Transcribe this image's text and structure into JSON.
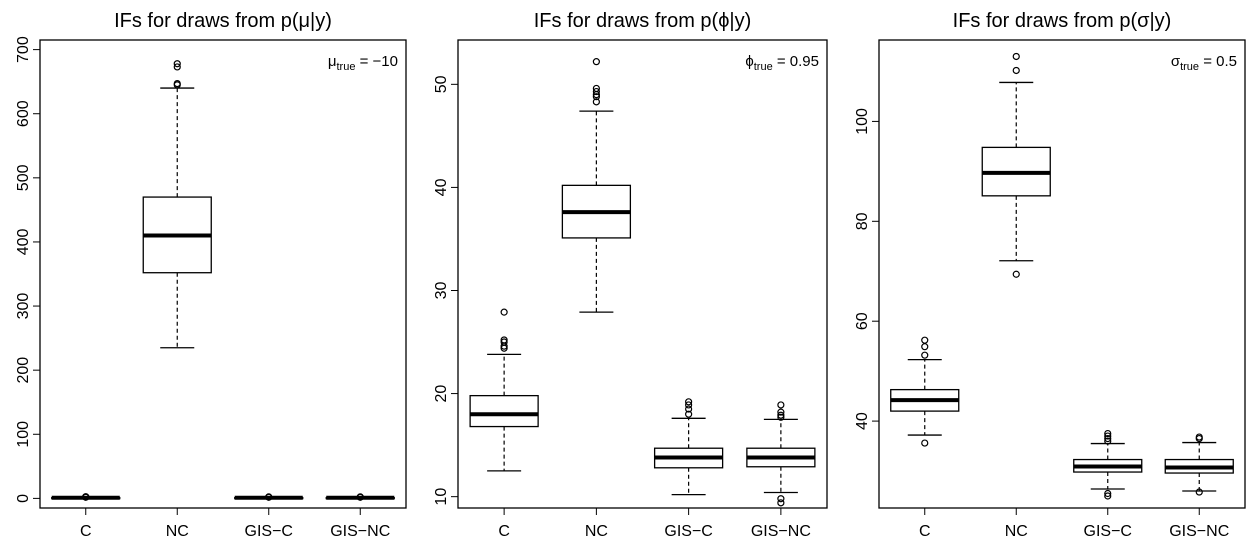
{
  "chart_data": [
    {
      "type": "boxplot",
      "title": "IFs for draws from p(μ|y)",
      "annotation": {
        "symbol": "μ",
        "subscript": "true",
        "value": " = −10"
      },
      "categories": [
        "C",
        "NC",
        "GIS−C",
        "GIS−NC"
      ],
      "ylim": [
        -15,
        715
      ],
      "yticks": [
        0,
        100,
        200,
        300,
        400,
        500,
        600,
        700
      ],
      "boxes": [
        {
          "lower_whisker": 0.5,
          "q1": 0.8,
          "median": 1.0,
          "q3": 1.2,
          "upper_whisker": 1.6,
          "outliers": [
            1.8,
            2.0,
            2.3,
            2.6
          ]
        },
        {
          "lower_whisker": 235,
          "q1": 352,
          "median": 410,
          "q3": 470,
          "upper_whisker": 640,
          "outliers": [
            645,
            647,
            673,
            678
          ]
        },
        {
          "lower_whisker": 0.5,
          "q1": 0.8,
          "median": 1.0,
          "q3": 1.2,
          "upper_whisker": 1.6,
          "outliers": [
            1.8,
            2.0,
            2.3
          ]
        },
        {
          "lower_whisker": 0.5,
          "q1": 0.8,
          "median": 1.0,
          "q3": 1.2,
          "upper_whisker": 1.6,
          "outliers": [
            1.8,
            2.0,
            2.3
          ]
        }
      ]
    },
    {
      "type": "boxplot",
      "title": "IFs for draws from p(ϕ|y)",
      "annotation": {
        "symbol": "ϕ",
        "subscript": "true",
        "value": " = 0.95"
      },
      "categories": [
        "C",
        "NC",
        "GIS−C",
        "GIS−NC"
      ],
      "ylim": [
        8.9,
        54.3
      ],
      "yticks": [
        10,
        20,
        30,
        40,
        50
      ],
      "boxes": [
        {
          "lower_whisker": 12.5,
          "q1": 16.8,
          "median": 18.0,
          "q3": 19.8,
          "upper_whisker": 23.8,
          "outliers": [
            24.4,
            24.6,
            25.0,
            25.2,
            27.9
          ]
        },
        {
          "lower_whisker": 27.9,
          "q1": 35.1,
          "median": 37.6,
          "q3": 40.2,
          "upper_whisker": 47.4,
          "outliers": [
            48.3,
            48.8,
            49.0,
            49.3,
            49.6,
            52.2
          ]
        },
        {
          "lower_whisker": 10.2,
          "q1": 12.8,
          "median": 13.8,
          "q3": 14.7,
          "upper_whisker": 17.6,
          "outliers": [
            18.0,
            18.5,
            18.9,
            19.2
          ]
        },
        {
          "lower_whisker": 10.4,
          "q1": 12.9,
          "median": 13.8,
          "q3": 14.7,
          "upper_whisker": 17.5,
          "outliers": [
            9.4,
            9.8,
            17.7,
            17.9,
            18.2,
            18.9
          ]
        }
      ]
    },
    {
      "type": "boxplot",
      "title": "IFs for draws from p(σ|y)",
      "annotation": {
        "symbol": "σ",
        "subscript": "true",
        "value": " = 0.5"
      },
      "categories": [
        "C",
        "NC",
        "GIS−C",
        "GIS−NC"
      ],
      "ylim": [
        22.6,
        116.3
      ],
      "yticks": [
        40,
        60,
        80,
        100
      ],
      "boxes": [
        {
          "lower_whisker": 37.2,
          "q1": 42.0,
          "median": 44.2,
          "q3": 46.3,
          "upper_whisker": 52.3,
          "outliers": [
            35.6,
            53.2,
            54.9,
            56.2
          ]
        },
        {
          "lower_whisker": 72.1,
          "q1": 85.1,
          "median": 89.7,
          "q3": 94.8,
          "upper_whisker": 107.8,
          "outliers": [
            69.4,
            110.2,
            113.0
          ]
        },
        {
          "lower_whisker": 26.4,
          "q1": 29.8,
          "median": 30.9,
          "q3": 32.3,
          "upper_whisker": 35.5,
          "outliers": [
            25.0,
            25.5,
            36.0,
            36.5,
            37.0,
            37.5
          ]
        },
        {
          "lower_whisker": 26.0,
          "q1": 29.6,
          "median": 30.7,
          "q3": 32.3,
          "upper_whisker": 35.7,
          "outliers": [
            25.8,
            36.5,
            36.8
          ]
        }
      ]
    }
  ]
}
